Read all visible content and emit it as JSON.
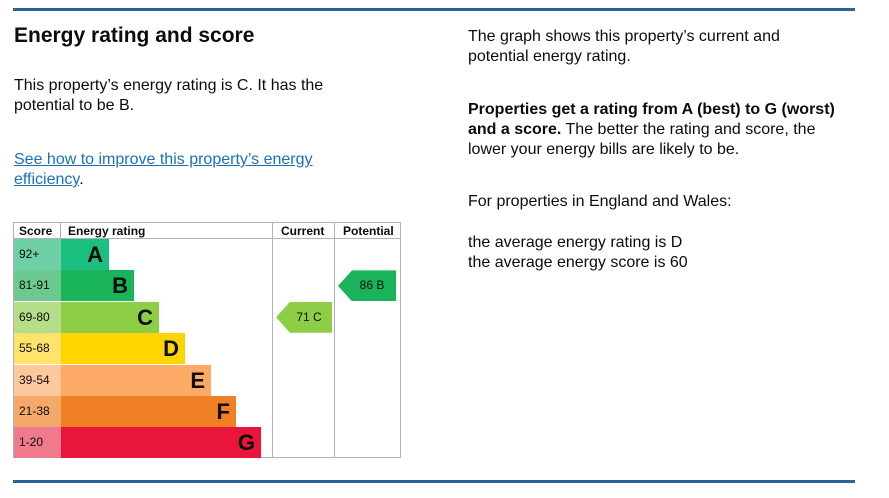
{
  "title": "Energy rating and score",
  "intro": "This property’s energy rating is C. It has the potential to be B.",
  "link": "See how to improve this property’s energy efficiency",
  "right": {
    "p1": "The graph shows this property’s current and potential energy rating.",
    "p2_bold": "Properties get a rating from A (best) to G (worst) and a score.",
    "p2_rest": " The better the rating and score, the lower your energy bills are likely to be.",
    "p3": "For properties in England and Wales:",
    "p4": "the average energy rating is D",
    "p5": "the average energy score is 60"
  },
  "chart": {
    "headers": {
      "score": "Score",
      "rating": "Energy rating",
      "current": "Current",
      "potential": "Potential"
    },
    "bands": [
      {
        "score": "92+",
        "letter": "A",
        "color": "#1bbf7f",
        "light": "#6fcfa6"
      },
      {
        "score": "81-91",
        "letter": "B",
        "color": "#19b459",
        "light": "#6cc98f"
      },
      {
        "score": "69-80",
        "letter": "C",
        "color": "#8dce46",
        "light": "#b6dd8a"
      },
      {
        "score": "55-68",
        "letter": "D",
        "color": "#ffd500",
        "light": "#ffe36a"
      },
      {
        "score": "39-54",
        "letter": "E",
        "color": "#fcaa65",
        "light": "#fdc89c"
      },
      {
        "score": "21-38",
        "letter": "F",
        "color": "#ef8023",
        "light": "#f4a96b"
      },
      {
        "score": "1-20",
        "letter": "G",
        "color": "#e9153b",
        "light": "#f07a8d"
      }
    ],
    "current": {
      "label": "71  C",
      "score": 71,
      "band": "C"
    },
    "potential": {
      "label": "86  B",
      "score": 86,
      "band": "B"
    }
  }
}
